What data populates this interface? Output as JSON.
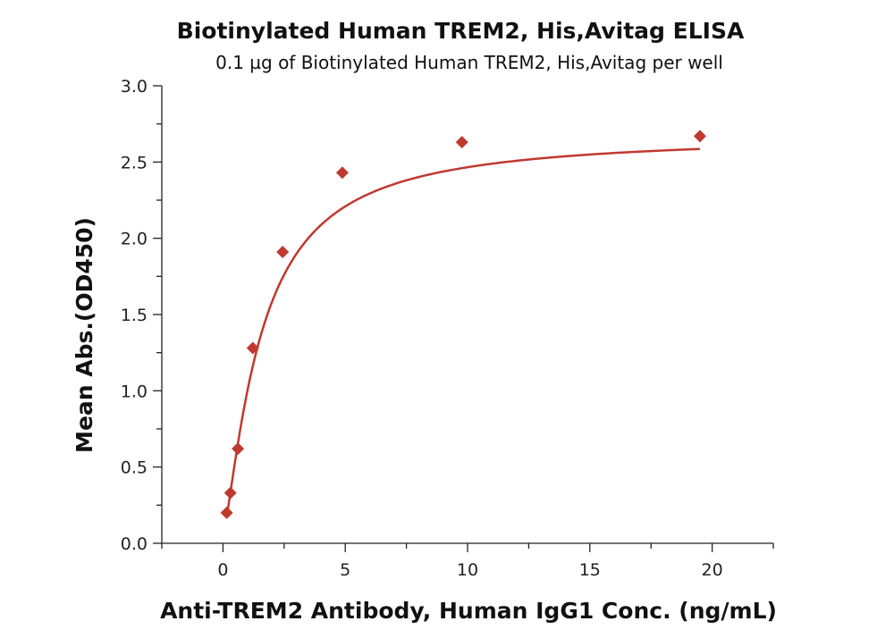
{
  "chart_data": {
    "type": "scatter",
    "title": "Biotinylated Human TREM2, His,Avitag ELISA",
    "subtitle": "0.1 µg of Biotinylated Human TREM2, His,Avitag per well",
    "xlabel": "Anti-TREM2 Antibody, Human IgG1 Conc. (ng/mL)",
    "ylabel": "Mean Abs.(OD450)",
    "xlim": [
      -2.5,
      22.5
    ],
    "ylim": [
      0,
      3.0
    ],
    "x_ticks": [
      0,
      5,
      10,
      15,
      20
    ],
    "y_ticks": [
      0.0,
      0.5,
      1.0,
      1.5,
      2.0,
      2.5,
      3.0
    ],
    "x_tick_labels": [
      "0",
      "5",
      "10",
      "15",
      "20"
    ],
    "y_tick_labels": [
      "0.0",
      "0.5",
      "1.0",
      "1.5",
      "2.0",
      "2.5",
      "3.0"
    ],
    "grid": false,
    "legend": "none",
    "marker": "diamond",
    "color": "#C0392F",
    "series": [
      {
        "x": [
          0.153,
          0.305,
          0.61,
          1.22,
          2.44,
          4.88,
          9.77,
          19.5
        ],
        "y": [
          0.2,
          0.33,
          0.62,
          1.28,
          1.91,
          2.43,
          2.63,
          2.67
        ],
        "fit": "sigmoidal"
      }
    ]
  }
}
